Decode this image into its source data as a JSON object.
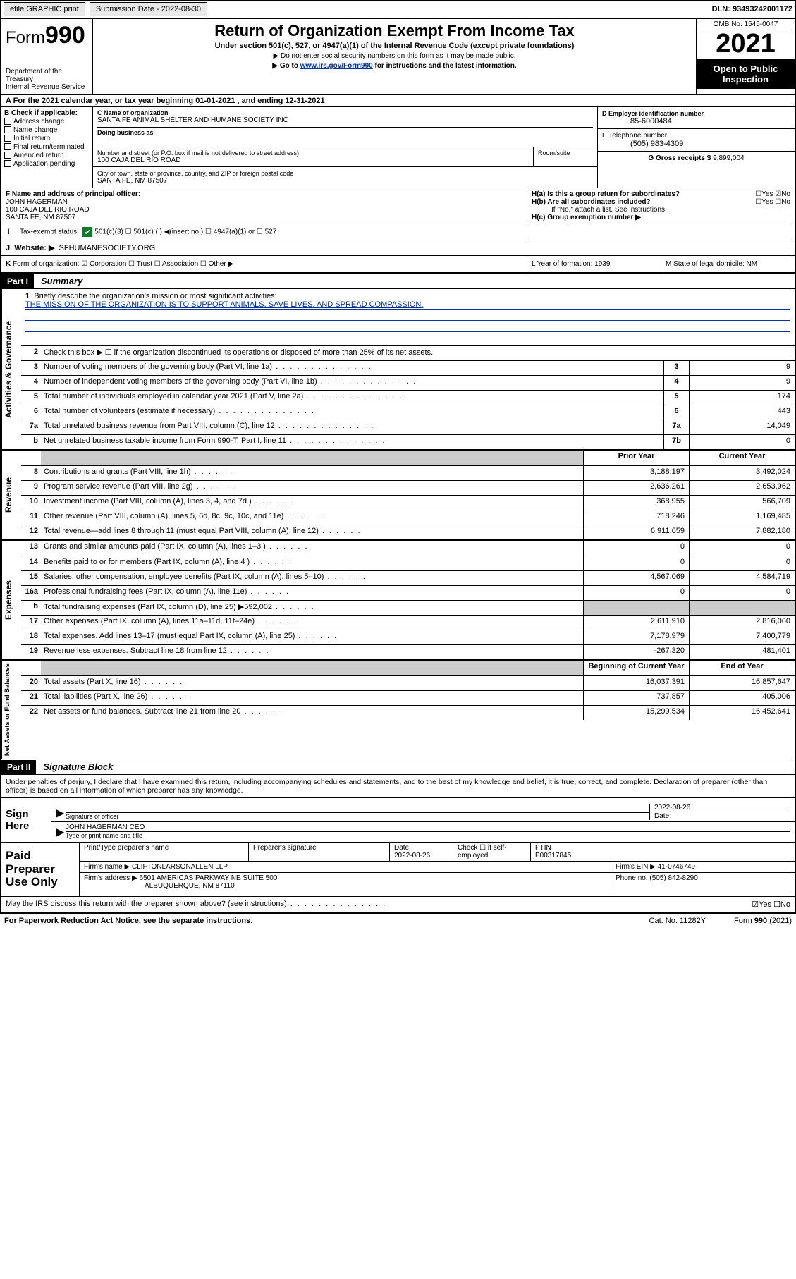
{
  "metaBar": {
    "efile": "efile GRAPHIC print",
    "subLabel": "Submission Date - 2022-08-30",
    "dln": "DLN: 93493242001172"
  },
  "header": {
    "formWord": "Form",
    "formNum": "990",
    "dept": "Department of the Treasury",
    "irs": "Internal Revenue Service",
    "title": "Return of Organization Exempt From Income Tax",
    "sub": "Under section 501(c), 527, or 4947(a)(1) of the Internal Revenue Code (except private foundations)",
    "warn": "Do not enter social security numbers on this form as it may be made public.",
    "goto": "Go to www.irs.gov/Form990 for instructions and the latest information.",
    "gotoUrl": "www.irs.gov/Form990",
    "omb": "OMB No. 1545-0047",
    "year": "2021",
    "openPublic": "Open to Public Inspection"
  },
  "rowA": "For the 2021 calendar year, or tax year beginning 01-01-2021   , and ending 12-31-2021",
  "rowALead": "A",
  "boxB": {
    "head": "B Check if applicable:",
    "items": [
      "Address change",
      "Name change",
      "Initial return",
      "Final return/terminated",
      "Amended return",
      "Application pending"
    ]
  },
  "boxC": {
    "nameLbl": "C Name of organization",
    "name": "SANTA FE ANIMAL SHELTER AND HUMANE SOCIETY INC",
    "dbaLbl": "Doing business as",
    "addrLbl": "Number and street (or P.O. box if mail is not delivered to street address)",
    "roomLbl": "Room/suite",
    "addr": "100 CAJA DEL RIO ROAD",
    "cityLbl": "City or town, state or province, country, and ZIP or foreign postal code",
    "city": "SANTA FE, NM  87507"
  },
  "boxD": {
    "lbl": "D Employer identification number",
    "val": "85-6000484"
  },
  "boxE": {
    "lbl": "E Telephone number",
    "val": "(505) 983-4309"
  },
  "boxG": {
    "lbl": "G Gross receipts $",
    "val": "9,899,004"
  },
  "rowF": {
    "lbl": "F Name and address of principal officer:",
    "name": "JOHN HAGERMAN",
    "addr1": "100 CAJA DEL RIO ROAD",
    "addr2": "SANTA FE, NM  87507"
  },
  "rowH": {
    "a": "H(a)  Is this a group return for subordinates?",
    "aYN": "☐Yes ☑No",
    "b": "H(b)  Are all subordinates included?",
    "bYN": "☐Yes ☐No",
    "bnote": "If \"No,\" attach a list. See instructions.",
    "c": "H(c)  Group exemption number ▶"
  },
  "rowI": {
    "lead": "I",
    "lbl": "Tax-exempt status:",
    "opts": "501(c)(3)     ☐ 501(c) (  ) ◀(insert no.)     ☐ 4947(a)(1) or   ☐ 527"
  },
  "rowJ": {
    "lead": "J",
    "lbl": "Website: ▶",
    "val": "SFHUMANESOCIETY.ORG"
  },
  "rowK": {
    "lead": "K",
    "body": "Form of organization:  ☑ Corporation  ☐ Trust  ☐ Association  ☐ Other ▶",
    "mid": "L Year of formation: 1939",
    "right": "M State of legal domicile: NM"
  },
  "part1": {
    "barLabel": "Part I",
    "barTitle": "Summary"
  },
  "gov": {
    "tab": "Activities & Governance",
    "r1": "Briefly describe the organization's mission or most significant activities:",
    "mission": "THE MISSION OF THE ORGANIZATION IS TO SUPPORT ANIMALS, SAVE LIVES, AND SPREAD COMPASSION.",
    "r2": "Check this box ▶ ☐  if the organization discontinued its operations or disposed of more than 25% of its net assets.",
    "lines": [
      {
        "n": "3",
        "t": "Number of voting members of the governing body (Part VI, line 1a)",
        "box": "3",
        "v": "9"
      },
      {
        "n": "4",
        "t": "Number of independent voting members of the governing body (Part VI, line 1b)",
        "box": "4",
        "v": "9"
      },
      {
        "n": "5",
        "t": "Total number of individuals employed in calendar year 2021 (Part V, line 2a)",
        "box": "5",
        "v": "174"
      },
      {
        "n": "6",
        "t": "Total number of volunteers (estimate if necessary)",
        "box": "6",
        "v": "443"
      },
      {
        "n": "7a",
        "t": "Total unrelated business revenue from Part VIII, column (C), line 12",
        "box": "7a",
        "v": "14,049"
      },
      {
        "n": "b",
        "t": "Net unrelated business taxable income from Form 990-T, Part I, line 11",
        "box": "7b",
        "v": "0"
      }
    ]
  },
  "twoColHead": {
    "prior": "Prior Year",
    "current": "Current Year"
  },
  "rev": {
    "tab": "Revenue",
    "lines": [
      {
        "n": "8",
        "t": "Contributions and grants (Part VIII, line 1h)",
        "p": "3,188,197",
        "c": "3,492,024"
      },
      {
        "n": "9",
        "t": "Program service revenue (Part VIII, line 2g)",
        "p": "2,636,261",
        "c": "2,653,962"
      },
      {
        "n": "10",
        "t": "Investment income (Part VIII, column (A), lines 3, 4, and 7d )",
        "p": "368,955",
        "c": "566,709"
      },
      {
        "n": "11",
        "t": "Other revenue (Part VIII, column (A), lines 5, 6d, 8c, 9c, 10c, and 11e)",
        "p": "718,246",
        "c": "1,169,485"
      },
      {
        "n": "12",
        "t": "Total revenue—add lines 8 through 11 (must equal Part VIII, column (A), line 12)",
        "p": "6,911,659",
        "c": "7,882,180"
      }
    ]
  },
  "exp": {
    "tab": "Expenses",
    "lines": [
      {
        "n": "13",
        "t": "Grants and similar amounts paid (Part IX, column (A), lines 1–3 )",
        "p": "0",
        "c": "0"
      },
      {
        "n": "14",
        "t": "Benefits paid to or for members (Part IX, column (A), line 4 )",
        "p": "0",
        "c": "0"
      },
      {
        "n": "15",
        "t": "Salaries, other compensation, employee benefits (Part IX, column (A), lines 5–10)",
        "p": "4,567,069",
        "c": "4,584,719"
      },
      {
        "n": "16a",
        "t": "Professional fundraising fees (Part IX, column (A), line 11e)",
        "p": "0",
        "c": "0"
      },
      {
        "n": "b",
        "t": "Total fundraising expenses (Part IX, column (D), line 25) ▶592,002",
        "p": "",
        "c": "",
        "gray": true
      },
      {
        "n": "17",
        "t": "Other expenses (Part IX, column (A), lines 11a–11d, 11f–24e)",
        "p": "2,611,910",
        "c": "2,816,060"
      },
      {
        "n": "18",
        "t": "Total expenses. Add lines 13–17 (must equal Part IX, column (A), line 25)",
        "p": "7,178,979",
        "c": "7,400,779"
      },
      {
        "n": "19",
        "t": "Revenue less expenses. Subtract line 18 from line 12",
        "p": "-267,320",
        "c": "481,401"
      }
    ]
  },
  "netHead": {
    "begin": "Beginning of Current Year",
    "end": "End of Year"
  },
  "net": {
    "tab": "Net Assets or Fund Balances",
    "lines": [
      {
        "n": "20",
        "t": "Total assets (Part X, line 16)",
        "p": "16,037,391",
        "c": "16,857,647"
      },
      {
        "n": "21",
        "t": "Total liabilities (Part X, line 26)",
        "p": "737,857",
        "c": "405,006"
      },
      {
        "n": "22",
        "t": "Net assets or fund balances. Subtract line 21 from line 20",
        "p": "15,299,534",
        "c": "16,452,641"
      }
    ]
  },
  "part2": {
    "barLabel": "Part II",
    "barTitle": "Signature Block"
  },
  "decl": "Under penalties of perjury, I declare that I have examined this return, including accompanying schedules and statements, and to the best of my knowledge and belief, it is true, correct, and complete. Declaration of preparer (other than officer) is based on all information of which preparer has any knowledge.",
  "sign": {
    "here": "Sign Here",
    "sigLbl": "Signature of officer",
    "date": "2022-08-26",
    "dateLbl": "Date",
    "nameTitle": "JOHN HAGERMAN CEO",
    "nameLbl": "Type or print name and title"
  },
  "paid": {
    "here": "Paid Preparer Use Only",
    "h1": "Print/Type preparer's name",
    "h2": "Preparer's signature",
    "h3": "Date",
    "h3v": "2022-08-26",
    "h4": "Check ☐ if self-employed",
    "h5": "PTIN",
    "h5v": "P00317845",
    "firmLbl": "Firm's name    ▶",
    "firm": "CLIFTONLARSONALLEN LLP",
    "einLbl": "Firm's EIN ▶",
    "ein": "41-0746749",
    "addrLbl": "Firm's address ▶",
    "addr1": "6501 AMERICAS PARKWAY NE SUITE 500",
    "addr2": "ALBUQUERQUE, NM  87110",
    "phoneLbl": "Phone no.",
    "phone": "(505) 842-8290"
  },
  "discuss": {
    "q": "May the IRS discuss this return with the preparer shown above? (see instructions)",
    "a": "☑Yes  ☐No"
  },
  "footer": {
    "pra": "For Paperwork Reduction Act Notice, see the separate instructions.",
    "cat": "Cat. No. 11282Y",
    "form": "Form 990 (2021)"
  }
}
